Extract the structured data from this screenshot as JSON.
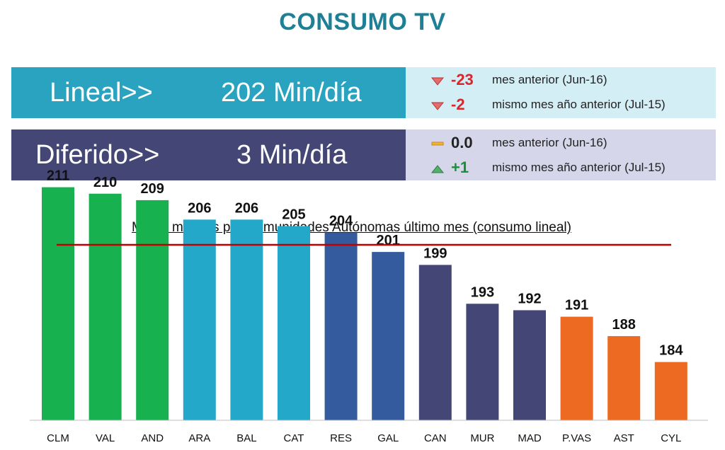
{
  "title": "CONSUMO TV",
  "kpis": [
    {
      "label": "Lineal>>",
      "value": "202 Min/día",
      "main_color": "#2aa3c0",
      "side_color": "#d4eef6",
      "deltas": [
        {
          "value": "-23",
          "text": "mes anterior (Jun-16)",
          "direction": "down",
          "color": "#d9262a"
        },
        {
          "value": "-2",
          "text": "mismo mes año anterior (Jul-15)",
          "direction": "down",
          "color": "#d9262a"
        }
      ]
    },
    {
      "label": "Diferido>>",
      "value": "3 Min/día",
      "main_color": "#444776",
      "side_color": "#d6d6ea",
      "deltas": [
        {
          "value": "0.0",
          "text": "mes anterior (Jun-16)",
          "direction": "flat",
          "color": "#222222"
        },
        {
          "value": "+1",
          "text": "mismo mes año anterior (Jul-15)",
          "direction": "up",
          "color": "#1a8f3a"
        }
      ]
    }
  ],
  "chart_data": {
    "type": "bar",
    "title": "Media minutos por Comunidades  Autónomas último mes (consumo lineal)",
    "categories": [
      "CLM",
      "VAL",
      "AND",
      "ARA",
      "BAL",
      "CAT",
      "RES",
      "GAL",
      "CAN",
      "MUR",
      "MAD",
      "P.VAS",
      "AST",
      "CYL"
    ],
    "values": [
      211,
      210,
      209,
      206,
      206,
      205,
      204,
      201,
      199,
      193,
      192,
      191,
      188,
      184
    ],
    "colors": [
      "#17b14f",
      "#17b14f",
      "#17b14f",
      "#23a8c9",
      "#23a8c9",
      "#23a8c9",
      "#345b9e",
      "#345b9e",
      "#444776",
      "#444776",
      "#444776",
      "#ec6a22",
      "#ec6a22",
      "#ec6a22"
    ],
    "reference_line": 202,
    "reference_color": "#c00000",
    "data_labels": true,
    "grid": false,
    "legend": "none"
  }
}
